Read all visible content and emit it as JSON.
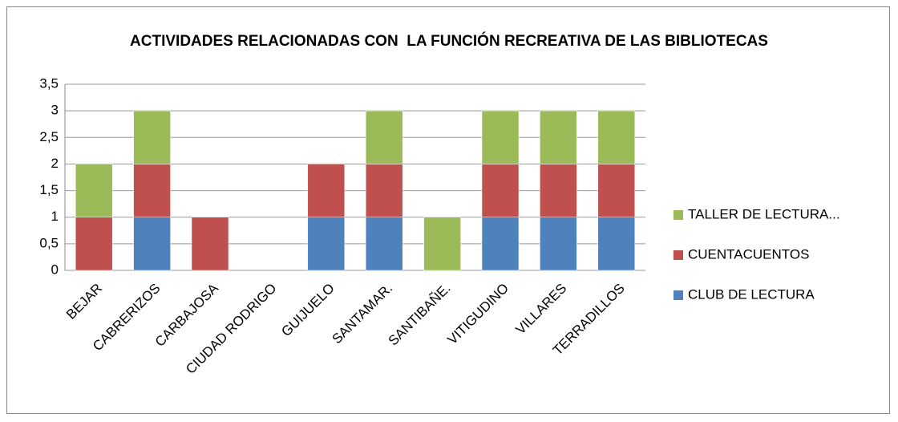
{
  "chart_data": {
    "type": "stacked_bar",
    "title": "ACTIVIDADES RELACIONADAS CON  LA FUNCIÓN RECREATIVA DE LAS BIBLIOTECAS",
    "categories": [
      "BEJAR",
      "CABRERIZOS",
      "CARBAJOSA",
      "CIUDAD RODRIGO",
      "GUIJUELO",
      "SANTAMAR.",
      "SANTIBAÑE.",
      "VITIGUDINO",
      "VILLARES",
      "TERRADILLOS"
    ],
    "series": [
      {
        "name": "CLUB DE LECTURA",
        "color": "#4f81bd",
        "values": [
          0,
          1,
          0,
          0,
          1,
          1,
          0,
          1,
          1,
          1
        ]
      },
      {
        "name": "CUENTACUENTOS",
        "color": "#c0504d",
        "values": [
          1,
          1,
          1,
          0,
          1,
          1,
          0,
          1,
          1,
          1
        ]
      },
      {
        "name": "TALLER DE LECTURA...",
        "color": "#9bbb59",
        "values": [
          1,
          1,
          0,
          0,
          0,
          1,
          1,
          1,
          1,
          1
        ]
      }
    ],
    "ylim": [
      0,
      3.5
    ],
    "yticks": [
      0,
      {
        "value": 0.5,
        "label": "0,5"
      },
      1,
      {
        "value": 1.5,
        "label": "1,5"
      },
      2,
      {
        "value": 2.5,
        "label": "2,5"
      },
      3,
      {
        "value": 3.5,
        "label": "3,5"
      }
    ],
    "grid": true,
    "legend": "right"
  }
}
